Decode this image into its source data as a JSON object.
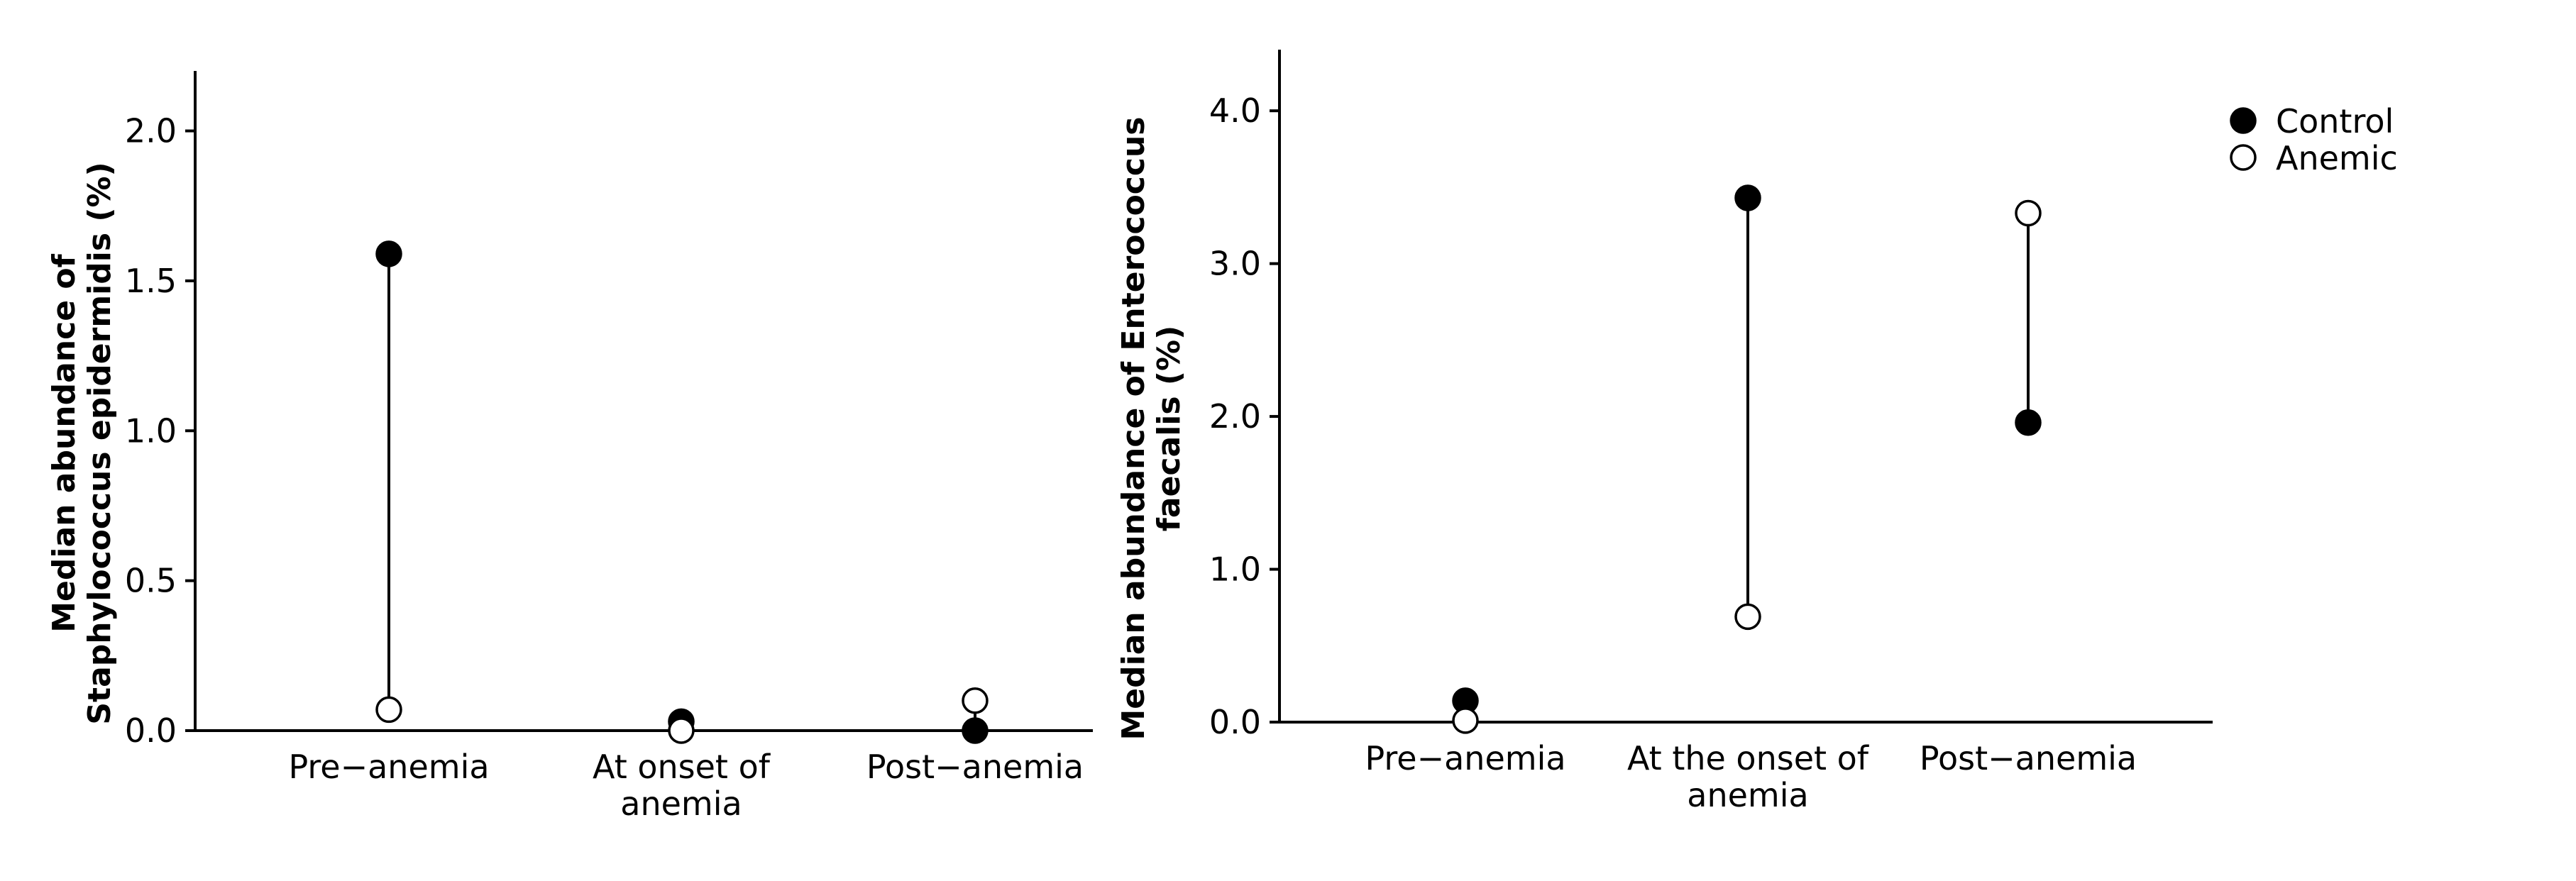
{
  "chart_data": [
    {
      "type": "dumbbell",
      "ylabel_lines": [
        "Median abundance of",
        "Staphylococcus epidermidis (%)"
      ],
      "categories": [
        [
          "Pre−anemia"
        ],
        [
          "At onset of",
          "anemia"
        ],
        [
          "Post−anemia"
        ]
      ],
      "ylim": [
        0,
        2.2
      ],
      "yticks": [
        0.0,
        0.5,
        1.0,
        1.5,
        2.0
      ],
      "ytick_labels": [
        "0.0",
        "0.5",
        "1.0",
        "1.5",
        "2.0"
      ],
      "grid": false,
      "series": [
        {
          "name": "Control",
          "marker": "filled",
          "values": [
            1.59,
            0.03,
            0.0
          ]
        },
        {
          "name": "Anemic",
          "marker": "open",
          "values": [
            0.07,
            0.0,
            0.1
          ]
        }
      ]
    },
    {
      "type": "dumbbell",
      "ylabel_lines": [
        "Median abundance of Enterococcus",
        "faecalis (%)"
      ],
      "categories": [
        [
          "Pre−anemia"
        ],
        [
          "At the onset of",
          "anemia"
        ],
        [
          "Post−anemia"
        ]
      ],
      "ylim": [
        0,
        4.4
      ],
      "yticks": [
        0.0,
        1.0,
        2.0,
        3.0,
        4.0
      ],
      "ytick_labels": [
        "0.0",
        "1.0",
        "2.0",
        "3.0",
        "4.0"
      ],
      "grid": false,
      "series": [
        {
          "name": "Control",
          "marker": "filled",
          "values": [
            0.14,
            3.43,
            1.96
          ]
        },
        {
          "name": "Anemic",
          "marker": "open",
          "values": [
            0.01,
            0.69,
            3.33
          ]
        }
      ]
    }
  ],
  "legend": {
    "placement": "top-right",
    "items": [
      {
        "label": "Control",
        "marker": "filled"
      },
      {
        "label": "Anemic",
        "marker": "open"
      }
    ]
  },
  "colors": {
    "ink": "#000000",
    "open_fill": "#ffffff"
  }
}
